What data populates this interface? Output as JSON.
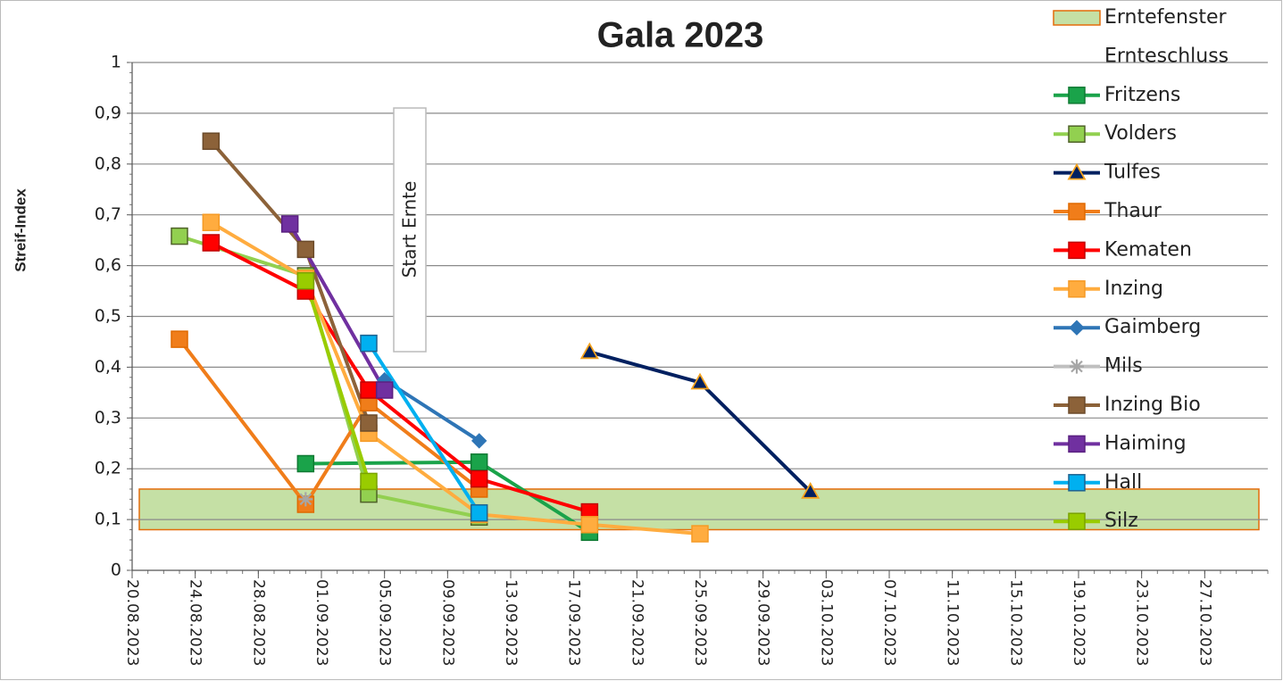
{
  "chart_data": {
    "type": "line",
    "title": "Gala 2023",
    "ylabel": "Streif-Index",
    "xlim": [
      "20.08.2023",
      "31.10.2023"
    ],
    "xticks": [
      "20.08.2023",
      "24.08.2023",
      "28.08.2023",
      "01.09.2023",
      "05.09.2023",
      "09.09.2023",
      "13.09.2023",
      "17.09.2023",
      "21.09.2023",
      "25.09.2023",
      "29.09.2023",
      "03.10.2023",
      "07.10.2023",
      "11.10.2023",
      "15.10.2023",
      "19.10.2023",
      "23.10.2023",
      "27.10.2023"
    ],
    "ylim": [
      0,
      1
    ],
    "yticks": [
      0,
      {
        "value": 0.1,
        "label": "0,1"
      },
      {
        "value": 0.2,
        "label": "0,2"
      },
      {
        "value": 0.3,
        "label": "0,3"
      },
      {
        "value": 0.4,
        "label": "0,4"
      },
      {
        "value": 0.5,
        "label": "0,5"
      },
      {
        "value": 0.6,
        "label": "0,6"
      },
      {
        "value": 0.7,
        "label": "0,7"
      },
      {
        "value": 0.8,
        "label": "0,8"
      },
      {
        "value": 0.9,
        "label": "0,9"
      },
      1
    ],
    "grid": true,
    "band": {
      "name": "Erntefenster",
      "ymin": 0.08,
      "ymax": 0.16,
      "color": "#c5e0a5",
      "edge": "#e46c0a"
    },
    "legend_extra": "Ernteschluss",
    "annotation": "Start Ernte",
    "series": [
      {
        "name": "Fritzens",
        "color": "#1aa34a",
        "marker": "square",
        "marker_fill": "#1aa34a",
        "marker_edge": "#0f7a33",
        "x": [
          "31.08.2023",
          "11.09.2023",
          "18.09.2023"
        ],
        "values": [
          0.21,
          0.213,
          0.075
        ]
      },
      {
        "name": "Volders",
        "color": "#92d050",
        "marker": "square",
        "marker_fill": "#92d050",
        "marker_edge": "#4f6228",
        "x": [
          "23.08.2023",
          "31.08.2023",
          "04.09.2023",
          "11.09.2023"
        ],
        "values": [
          0.658,
          0.58,
          0.15,
          0.105
        ]
      },
      {
        "name": "Tulfes",
        "color": "#002060",
        "marker": "triangle",
        "marker_fill": "#002060",
        "marker_edge": "#f4a21e",
        "x": [
          "18.09.2023",
          "25.09.2023",
          "02.10.2023"
        ],
        "values": [
          0.43,
          0.37,
          0.155
        ]
      },
      {
        "name": "Thaur",
        "color": "#f07d1a",
        "marker": "square",
        "marker_fill": "#f07d1a",
        "marker_edge": "#e06a00",
        "x": [
          "23.08.2023",
          "31.08.2023",
          "04.09.2023",
          "11.09.2023"
        ],
        "values": [
          0.455,
          0.13,
          0.33,
          0.16
        ]
      },
      {
        "name": "Kematen",
        "color": "#ff0000",
        "marker": "square",
        "marker_fill": "#ff0000",
        "marker_edge": "#c00000",
        "x": [
          "25.08.2023",
          "31.08.2023",
          "04.09.2023",
          "11.09.2023",
          "18.09.2023"
        ],
        "values": [
          0.645,
          0.55,
          0.355,
          0.18,
          0.115
        ]
      },
      {
        "name": "Inzing",
        "color": "#ffac3f",
        "marker": "square",
        "marker_fill": "#ffac3f",
        "marker_edge": "#f59a25",
        "x": [
          "25.08.2023",
          "31.08.2023",
          "04.09.2023",
          "11.09.2023",
          "18.09.2023",
          "25.09.2023"
        ],
        "values": [
          0.685,
          0.575,
          0.27,
          0.11,
          0.09,
          0.072
        ]
      },
      {
        "name": "Gaimberg",
        "color": "#2e75b6",
        "marker": "diamond",
        "marker_fill": "#2e75b6",
        "marker_edge": "#2e75b6",
        "x": [
          "05.09.2023",
          "11.09.2023"
        ],
        "values": [
          0.375,
          0.255
        ]
      },
      {
        "name": "Mils",
        "color": "#bfbfbf",
        "marker": "asterisk",
        "marker_fill": "#bfbfbf",
        "marker_edge": "#a6a6a6",
        "x": [
          "31.08.2023"
        ],
        "values": [
          0.14
        ]
      },
      {
        "name": "Inzing Bio",
        "color": "#8c6239",
        "marker": "square",
        "marker_fill": "#8c6239",
        "marker_edge": "#6b4a2a",
        "x": [
          "25.08.2023",
          "31.08.2023",
          "04.09.2023"
        ],
        "values": [
          0.845,
          0.632,
          0.29
        ]
      },
      {
        "name": "Haiming",
        "color": "#7030a0",
        "marker": "square",
        "marker_fill": "#7030a0",
        "marker_edge": "#5a2080",
        "x": [
          "30.08.2023",
          "05.09.2023"
        ],
        "values": [
          0.682,
          0.355
        ]
      },
      {
        "name": "Hall",
        "color": "#00b0f0",
        "marker": "square",
        "marker_fill": "#00b0f0",
        "marker_edge": "#1f6391",
        "x": [
          "04.09.2023",
          "11.09.2023"
        ],
        "values": [
          0.447,
          0.113
        ]
      },
      {
        "name": "Silz",
        "color": "#99cc00",
        "marker": "square",
        "marker_fill": "#99cc00",
        "marker_edge": "#7aa300",
        "x": [
          "31.08.2023",
          "04.09.2023"
        ],
        "values": [
          0.57,
          0.175
        ]
      }
    ]
  }
}
